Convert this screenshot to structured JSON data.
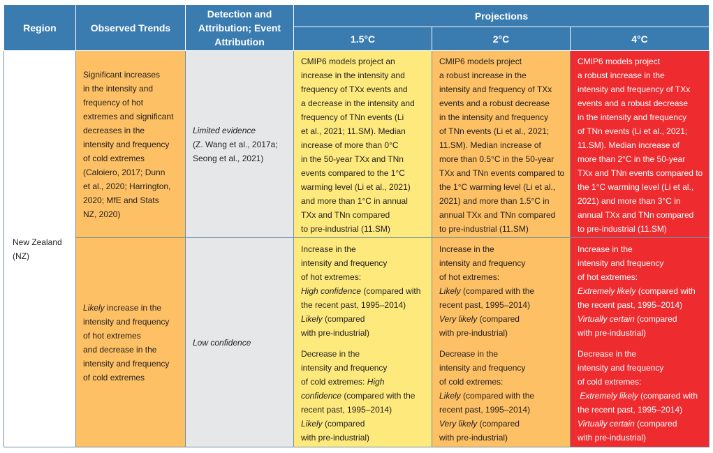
{
  "headers": {
    "region": "Region",
    "observed": "Observed Trends",
    "detection_l1": "Detection and",
    "detection_l2": "Attribution; Event",
    "detection_l3": "Attribution",
    "projections": "Projections",
    "p15": "1.5°C",
    "p2": "2°C",
    "p4": "4°C"
  },
  "region": {
    "l1": "New Zealand",
    "l2": "(NZ)"
  },
  "row1": {
    "observed": [
      "Significant increases",
      "in the intensity and",
      "frequency of hot",
      "extremes and significant",
      "decreases in the",
      "intensity and frequency",
      "of cold extremes",
      "(Caloiero, 2017; Dunn",
      "et al., 2020; Harrington,",
      "2020; MfE and Stats",
      "NZ, 2020)"
    ],
    "attribution_it": "Limited evidence",
    "attribution": [
      "(Z. Wang et al., 2017a;",
      "Seong et al., 2021)"
    ],
    "p15": [
      "CMIP6 models project an",
      "increase in the intensity and",
      "frequency of TXx events and",
      "a decrease in the intensity and",
      "frequency of TNn events (Li",
      "et al., 2021; 11.SM). Median",
      "increase of more than 0°C",
      "in the 50-year TXx and TNn",
      "events compared to the 1°C",
      "warming level (Li et al., 2021)",
      "and more than 1°C in annual",
      "TXx and TNn compared",
      "to pre-industrial (11.SM)"
    ],
    "p2": [
      "CMIP6 models project",
      "a robust increase in the",
      "intensity and frequency of TXx",
      "events and a robust decrease",
      "in the intensity and frequency",
      "of TNn events (Li et al., 2021;",
      "11.SM). Median increase of",
      "more than 0.5°C in the 50-year",
      "TXx and TNn events compared to",
      "the 1°C warming level (Li et al.,",
      "2021) and more than 1.5°C in",
      "annual TXx and TNn compared",
      "to pre-industrial (11.SM)"
    ],
    "p4": [
      "CMIP6 models project",
      "a robust increase in the",
      "intensity and frequency of TXx",
      "events and a robust decrease",
      "in the intensity and frequency",
      "of TNn events (Li et al., 2021;",
      "11.SM). Median increase of",
      "more than 2°C in the 50-year",
      "TXx and TNn events compared to",
      "the 1°C warming level (Li et al.,",
      "2021) and more than 3°C in",
      "annual TXx and TNn compared",
      "to pre-industrial (11.SM)"
    ]
  },
  "row2": {
    "observed_it": "Likely",
    "observed_first_rest": " increase in the",
    "observed": [
      "intensity and frequency",
      "of hot extremes",
      "and decrease in the",
      "intensity and frequency",
      "of cold extremes"
    ],
    "attribution_it": "Low confidence",
    "p15": {
      "hot_intro": [
        "Increase in the",
        "intensity and frequency",
        "of hot extremes:"
      ],
      "hot_conf1_it": "High confidence",
      "hot_conf1_rest": " (compared with",
      "hot_conf1_line2": "the recent past, 1995–2014)",
      "hot_conf2_it": "Likely",
      "hot_conf2_rest": " (compared",
      "hot_conf2_line2": "with pre-industrial)",
      "cold_intro": [
        "Decrease in the",
        "intensity and frequency"
      ],
      "cold_intro3_plain": "of cold extremes: ",
      "cold_intro3_it": "High",
      "cold_conf1_it": "confidence",
      "cold_conf1_rest": " (compared with the",
      "cold_conf1_line2": "recent past, 1995–2014)",
      "cold_conf2_it": "Likely",
      "cold_conf2_rest": " (compared",
      "cold_conf2_line2": "with pre-industrial)"
    },
    "p2": {
      "hot_intro": [
        "Increase in the",
        "intensity and frequency",
        "of hot extremes:"
      ],
      "hot_conf1_it": "Likely",
      "hot_conf1_rest": " (compared with the",
      "hot_conf1_line2": "recent past, 1995–2014)",
      "hot_conf2_it": "Very likely",
      "hot_conf2_rest": " (compared",
      "hot_conf2_line2": "with pre-industrial)",
      "cold_intro": [
        "Decrease in the",
        "intensity and frequency",
        "of cold extremes:"
      ],
      "cold_conf1_it": "Likely",
      "cold_conf1_rest": " (compared with the",
      "cold_conf1_line2": "recent past, 1995–2014)",
      "cold_conf2_it": "Very likely",
      "cold_conf2_rest": " (compared",
      "cold_conf2_line2": "with pre-industrial)"
    },
    "p4": {
      "hot_intro": [
        "Increase in the",
        "intensity and frequency",
        "of hot extremes:"
      ],
      "hot_conf1_it": "Extremely likely",
      "hot_conf1_rest": " (compared with",
      "hot_conf1_line2": "the recent past, 1995–2014)",
      "hot_conf2_it": "Virtually certain",
      "hot_conf2_rest": " (compared",
      "hot_conf2_line2": "with pre-industrial)",
      "cold_intro": [
        "Decrease in the",
        "intensity and frequency",
        "of cold extremes:"
      ],
      "cold_conf1_it": "Extremely likely",
      "cold_conf1_rest": " (compared with",
      "cold_conf1_line2": "the recent past, 1995–2014)",
      "cold_conf2_it": "Virtually certain",
      "cold_conf2_rest": " (compared",
      "cold_conf2_line2": "with pre-industrial)"
    }
  },
  "colors": {
    "header_blue": "#3a7bb0",
    "observed_orange": "#fdc064",
    "attribution_grey": "#e6e7e8",
    "proj_15_yellow": "#fde97c",
    "proj_2_orange": "#fdc064",
    "proj_4_red": "#ee2b2f"
  }
}
